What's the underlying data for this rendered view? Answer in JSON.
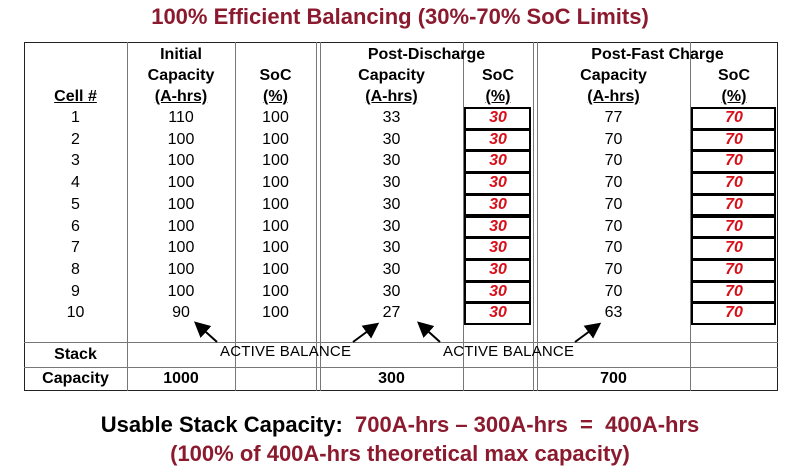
{
  "title": "100% Efficient Balancing (30%-70% SoC Limits)",
  "groups": {
    "initial": "Initial",
    "post_discharge": "Post-Discharge",
    "post_fast_charge": "Post-Fast Charge"
  },
  "headers": {
    "cell": "Cell #",
    "capacity": "Capacity",
    "capacity_unit": "(A-hrs)",
    "soc": "SoC",
    "soc_unit": "(%)"
  },
  "rows": [
    {
      "cell": "1",
      "init_cap": "110",
      "init_soc": "100",
      "dis_cap": "33",
      "dis_soc": "30",
      "chg_cap": "77",
      "chg_soc": "70"
    },
    {
      "cell": "2",
      "init_cap": "100",
      "init_soc": "100",
      "dis_cap": "30",
      "dis_soc": "30",
      "chg_cap": "70",
      "chg_soc": "70"
    },
    {
      "cell": "3",
      "init_cap": "100",
      "init_soc": "100",
      "dis_cap": "30",
      "dis_soc": "30",
      "chg_cap": "70",
      "chg_soc": "70"
    },
    {
      "cell": "4",
      "init_cap": "100",
      "init_soc": "100",
      "dis_cap": "30",
      "dis_soc": "30",
      "chg_cap": "70",
      "chg_soc": "70"
    },
    {
      "cell": "5",
      "init_cap": "100",
      "init_soc": "100",
      "dis_cap": "30",
      "dis_soc": "30",
      "chg_cap": "70",
      "chg_soc": "70"
    },
    {
      "cell": "6",
      "init_cap": "100",
      "init_soc": "100",
      "dis_cap": "30",
      "dis_soc": "30",
      "chg_cap": "70",
      "chg_soc": "70"
    },
    {
      "cell": "7",
      "init_cap": "100",
      "init_soc": "100",
      "dis_cap": "30",
      "dis_soc": "30",
      "chg_cap": "70",
      "chg_soc": "70"
    },
    {
      "cell": "8",
      "init_cap": "100",
      "init_soc": "100",
      "dis_cap": "30",
      "dis_soc": "30",
      "chg_cap": "70",
      "chg_soc": "70"
    },
    {
      "cell": "9",
      "init_cap": "100",
      "init_soc": "100",
      "dis_cap": "30",
      "dis_soc": "30",
      "chg_cap": "70",
      "chg_soc": "70"
    },
    {
      "cell": "10",
      "init_cap": "90",
      "init_soc": "100",
      "dis_cap": "27",
      "dis_soc": "30",
      "chg_cap": "63",
      "chg_soc": "70"
    }
  ],
  "active_balance": "ACTIVE BALANCE",
  "stack": {
    "label_line1": "Stack",
    "label_line2": "Capacity",
    "initial": "1000",
    "post_discharge": "300",
    "post_fast_charge": "700"
  },
  "footer": {
    "line1_prefix": "Usable Stack Capacity:",
    "line1_value": "700A-hrs – 300A-hrs  =  400A-hrs",
    "line2": "(100% of 400A-hrs theoretical max capacity)"
  },
  "colors": {
    "title": "#8b1a2e",
    "soc_value": "#d8101a",
    "grid": "#777777"
  }
}
